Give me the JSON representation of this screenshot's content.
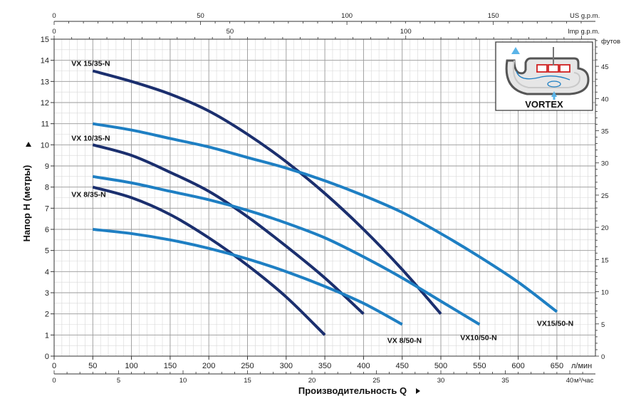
{
  "chart_data": {
    "type": "line",
    "xlabel": "Производительность Q",
    "ylabel": "Напор H (метры)",
    "x_unit": "л/мин",
    "x_ticks": [
      0,
      50,
      100,
      150,
      200,
      250,
      300,
      350,
      400,
      450,
      500,
      550,
      600,
      650
    ],
    "xlim": [
      0,
      700
    ],
    "ylim": [
      0,
      15
    ],
    "y_ticks": [
      0,
      1,
      2,
      3,
      4,
      5,
      6,
      7,
      8,
      9,
      10,
      11,
      12,
      13,
      14,
      15
    ],
    "grid": true,
    "secondary_axes": {
      "top_us": {
        "label": "US g.p.m.",
        "ticks": [
          0,
          50,
          100,
          150
        ]
      },
      "top_imp": {
        "label": "Imp g.p.m.",
        "ticks": [
          0,
          50,
          100
        ]
      },
      "bottom_m3": {
        "label": "м³/час",
        "ticks": [
          0,
          5,
          10,
          15,
          20,
          25,
          30,
          35,
          40
        ]
      },
      "right_ft": {
        "label": "футов",
        "ticks": [
          0,
          5,
          10,
          15,
          20,
          25,
          30,
          35,
          40,
          45
        ]
      }
    },
    "series": [
      {
        "name": "VX 15/35-N",
        "color": "#1b2f6e",
        "x": [
          50,
          100,
          150,
          200,
          250,
          300,
          350,
          400,
          450,
          500
        ],
        "y": [
          13.5,
          13.0,
          12.4,
          11.6,
          10.5,
          9.2,
          7.7,
          6.0,
          4.1,
          2.0
        ]
      },
      {
        "name": "VX 10/35-N",
        "color": "#1b2f6e",
        "x": [
          50,
          100,
          150,
          200,
          250,
          300,
          350,
          400
        ],
        "y": [
          10.0,
          9.5,
          8.7,
          7.8,
          6.6,
          5.2,
          3.7,
          2.0
        ]
      },
      {
        "name": "VX 8/35-N",
        "color": "#1b2f6e",
        "x": [
          50,
          100,
          150,
          200,
          250,
          300,
          350
        ],
        "y": [
          8.0,
          7.5,
          6.7,
          5.6,
          4.3,
          2.8,
          1.0
        ]
      },
      {
        "name": "VX15/50-N",
        "color": "#1e7fc3",
        "x": [
          50,
          100,
          150,
          200,
          250,
          300,
          350,
          400,
          450,
          500,
          550,
          600,
          650
        ],
        "y": [
          11.0,
          10.7,
          10.3,
          9.9,
          9.4,
          8.9,
          8.3,
          7.6,
          6.8,
          5.8,
          4.7,
          3.5,
          2.1
        ]
      },
      {
        "name": "VX10/50-N",
        "color": "#1e7fc3",
        "x": [
          50,
          100,
          150,
          200,
          250,
          300,
          350,
          400,
          450,
          500,
          550
        ],
        "y": [
          8.5,
          8.2,
          7.8,
          7.4,
          6.9,
          6.3,
          5.6,
          4.7,
          3.7,
          2.6,
          1.5
        ]
      },
      {
        "name": "VX 8/50-N",
        "color": "#1e7fc3",
        "x": [
          50,
          100,
          150,
          200,
          250,
          300,
          350,
          400,
          450
        ],
        "y": [
          6.0,
          5.8,
          5.5,
          5.1,
          4.6,
          4.0,
          3.3,
          2.5,
          1.5
        ]
      }
    ]
  },
  "inset": {
    "label": "VORTEX"
  }
}
